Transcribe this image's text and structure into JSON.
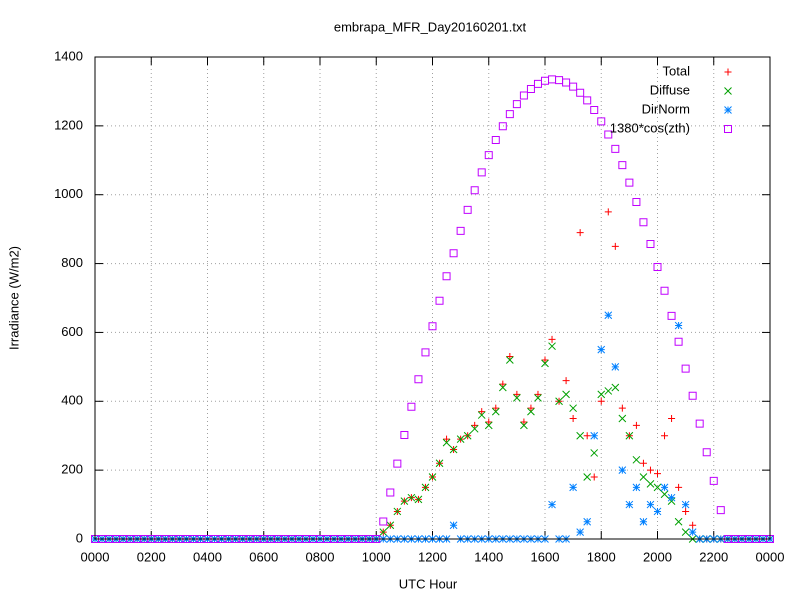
{
  "chart_data": {
    "type": "scatter",
    "title": "embrapa_MFR_Day20160201.txt",
    "x_label": "UTC Hour",
    "y_label": "Irradiance (W/m2)",
    "xlim": [
      0,
      24
    ],
    "ylim": [
      0,
      1400
    ],
    "xticks": [
      {
        "value": 0,
        "label": "0000"
      },
      {
        "value": 2,
        "label": "0200"
      },
      {
        "value": 4,
        "label": "0400"
      },
      {
        "value": 6,
        "label": "0600"
      },
      {
        "value": 8,
        "label": "0800"
      },
      {
        "value": 10,
        "label": "1000"
      },
      {
        "value": 12,
        "label": "1200"
      },
      {
        "value": 14,
        "label": "1400"
      },
      {
        "value": 16,
        "label": "1600"
      },
      {
        "value": 18,
        "label": "1800"
      },
      {
        "value": 20,
        "label": "2000"
      },
      {
        "value": 22,
        "label": "2200"
      },
      {
        "value": 24,
        "label": "0000"
      }
    ],
    "yticks": [
      0,
      200,
      400,
      600,
      800,
      1000,
      1200,
      1400
    ],
    "grid": true,
    "legend": "top-right",
    "x": [
      0,
      0.25,
      0.5,
      0.75,
      1,
      1.25,
      1.5,
      1.75,
      2,
      2.25,
      2.5,
      2.75,
      3,
      3.25,
      3.5,
      3.75,
      4,
      4.25,
      4.5,
      4.75,
      5,
      5.25,
      5.5,
      5.75,
      6,
      6.25,
      6.5,
      6.75,
      7,
      7.25,
      7.5,
      7.75,
      8,
      8.25,
      8.5,
      8.75,
      9,
      9.25,
      9.5,
      9.75,
      10,
      10.25,
      10.5,
      10.75,
      11,
      11.25,
      11.5,
      11.75,
      12,
      12.25,
      12.5,
      12.75,
      13,
      13.25,
      13.5,
      13.75,
      14,
      14.25,
      14.5,
      14.75,
      15,
      15.25,
      15.5,
      15.75,
      16,
      16.25,
      16.5,
      16.75,
      17,
      17.25,
      17.5,
      17.75,
      18,
      18.25,
      18.5,
      18.75,
      19,
      19.25,
      19.5,
      19.75,
      20,
      20.25,
      20.5,
      20.75,
      21,
      21.25,
      21.5,
      21.75,
      22,
      22.25,
      22.5,
      22.75,
      23,
      23.25,
      23.5,
      23.75,
      24
    ],
    "series": [
      {
        "name": "Total",
        "color": "#ff0000",
        "marker": "plus",
        "values": [
          0,
          0,
          0,
          0,
          0,
          0,
          0,
          0,
          0,
          0,
          0,
          0,
          0,
          0,
          0,
          0,
          0,
          0,
          0,
          0,
          0,
          0,
          0,
          0,
          0,
          0,
          0,
          0,
          0,
          0,
          0,
          0,
          0,
          0,
          0,
          0,
          0,
          0,
          0,
          0,
          0,
          20,
          40,
          80,
          110,
          120,
          115,
          150,
          180,
          220,
          290,
          260,
          290,
          300,
          330,
          370,
          340,
          380,
          450,
          530,
          420,
          340,
          380,
          420,
          520,
          580,
          400,
          460,
          350,
          890,
          300,
          180,
          400,
          950,
          850,
          380,
          300,
          330,
          220,
          200,
          190,
          300,
          350,
          150,
          80,
          40,
          0,
          0,
          0,
          0,
          0,
          0,
          0,
          0,
          0,
          0,
          0
        ]
      },
      {
        "name": "Diffuse",
        "color": "#00a000",
        "marker": "cross",
        "values": [
          0,
          0,
          0,
          0,
          0,
          0,
          0,
          0,
          0,
          0,
          0,
          0,
          0,
          0,
          0,
          0,
          0,
          0,
          0,
          0,
          0,
          0,
          0,
          0,
          0,
          0,
          0,
          0,
          0,
          0,
          0,
          0,
          0,
          0,
          0,
          0,
          0,
          0,
          0,
          0,
          0,
          20,
          40,
          80,
          110,
          120,
          115,
          150,
          180,
          220,
          280,
          260,
          290,
          300,
          320,
          360,
          330,
          370,
          440,
          520,
          410,
          330,
          370,
          410,
          510,
          560,
          400,
          420,
          380,
          300,
          180,
          250,
          420,
          430,
          440,
          350,
          300,
          230,
          180,
          160,
          150,
          130,
          110,
          50,
          20,
          0,
          0,
          0,
          0,
          0,
          0,
          0,
          0,
          0,
          0,
          0,
          0
        ]
      },
      {
        "name": "DirNorm",
        "color": "#0080ff",
        "marker": "star",
        "values": [
          0,
          0,
          0,
          0,
          0,
          0,
          0,
          0,
          0,
          0,
          0,
          0,
          0,
          0,
          0,
          0,
          0,
          0,
          0,
          0,
          0,
          0,
          0,
          0,
          0,
          0,
          0,
          0,
          0,
          0,
          0,
          0,
          0,
          0,
          0,
          0,
          0,
          0,
          0,
          0,
          0,
          0,
          0,
          0,
          0,
          0,
          0,
          0,
          0,
          0,
          0,
          40,
          0,
          0,
          0,
          0,
          0,
          0,
          0,
          0,
          0,
          0,
          0,
          0,
          0,
          100,
          0,
          0,
          150,
          20,
          50,
          300,
          550,
          650,
          500,
          200,
          100,
          150,
          50,
          100,
          80,
          150,
          120,
          620,
          100,
          20,
          0,
          0,
          0,
          0,
          0,
          0,
          0,
          0,
          0,
          0,
          0
        ]
      },
      {
        "name": "1380*cos(zth)",
        "color": "#c000ff",
        "marker": "square",
        "values": [
          0,
          0,
          0,
          0,
          0,
          0,
          0,
          0,
          0,
          0,
          0,
          0,
          0,
          0,
          0,
          0,
          0,
          0,
          0,
          0,
          0,
          0,
          0,
          0,
          0,
          0,
          0,
          0,
          0,
          0,
          0,
          0,
          0,
          0,
          0,
          0,
          0,
          0,
          0,
          0,
          0,
          51,
          135,
          219,
          302,
          384,
          464,
          542,
          618,
          692,
          763,
          830,
          895,
          956,
          1013,
          1065,
          1115,
          1159,
          1199,
          1234,
          1263,
          1288,
          1307,
          1322,
          1331,
          1335,
          1333,
          1326,
          1314,
          1296,
          1274,
          1246,
          1213,
          1175,
          1133,
          1086,
          1035,
          979,
          920,
          857,
          790,
          721,
          648,
          573,
          495,
          416,
          335,
          252,
          169,
          84,
          0,
          0,
          0,
          0,
          0,
          0,
          0
        ]
      }
    ]
  }
}
